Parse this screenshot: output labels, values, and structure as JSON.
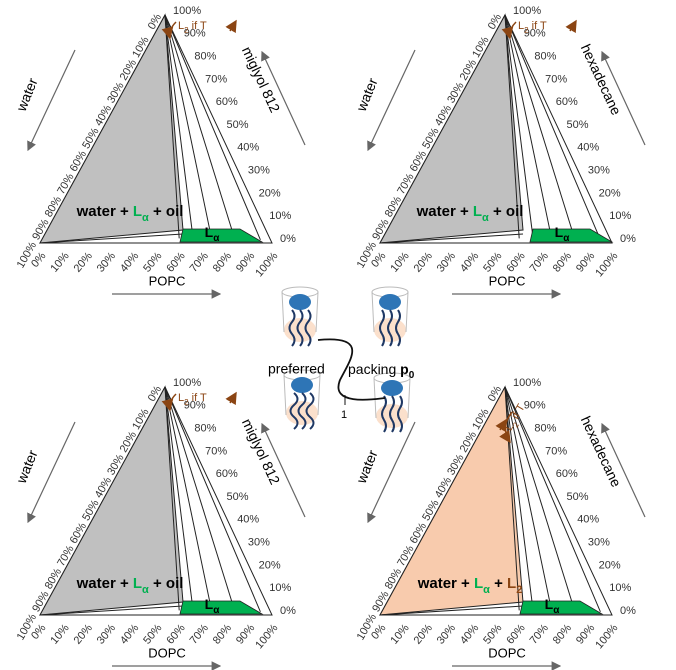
{
  "panels": [
    {
      "left_label": "water",
      "right_label": "miglyol 812",
      "bottom_label": "POPC",
      "ticks": [
        "0%",
        "10%",
        "20%",
        "30%",
        "40%",
        "50%",
        "60%",
        "70%",
        "80%",
        "90%",
        "100%"
      ],
      "region": [
        "water + ",
        "L",
        "α",
        " + oil"
      ],
      "phase": [
        "L",
        "α"
      ],
      "note": [
        "L",
        "2",
        " if T"
      ]
    },
    {
      "left_label": "water",
      "right_label": "hexadecane",
      "bottom_label": "POPC",
      "ticks": [
        "0%",
        "10%",
        "20%",
        "30%",
        "40%",
        "50%",
        "60%",
        "70%",
        "80%",
        "90%",
        "100%"
      ],
      "region": [
        "water + ",
        "L",
        "α",
        " + oil"
      ],
      "phase": [
        "L",
        "α"
      ],
      "note": [
        "L",
        "2",
        " if T"
      ]
    },
    {
      "left_label": "water",
      "right_label": "miglyol 812",
      "bottom_label": "DOPC",
      "ticks": [
        "0%",
        "10%",
        "20%",
        "30%",
        "40%",
        "50%",
        "60%",
        "70%",
        "80%",
        "90%",
        "100%"
      ],
      "region": [
        "water + ",
        "L",
        "α",
        " + oil"
      ],
      "phase": [
        "L",
        "α"
      ],
      "note": [
        "L",
        "2",
        " if T"
      ]
    },
    {
      "left_label": "water",
      "right_label": "hexadecane",
      "bottom_label": "DOPC",
      "ticks": [
        "0%",
        "10%",
        "20%",
        "30%",
        "40%",
        "50%",
        "60%",
        "70%",
        "80%",
        "90%",
        "100%"
      ],
      "region": [
        "water + ",
        "L",
        "α",
        " + ",
        "L",
        "2"
      ],
      "phase": [
        "L",
        "α"
      ],
      "note": [
        "L",
        "2",
        " if T"
      ]
    }
  ],
  "center": {
    "top": "preferred",
    "bottom": "packing ",
    "symbol": [
      "p",
      "0"
    ],
    "marker": "1"
  }
}
